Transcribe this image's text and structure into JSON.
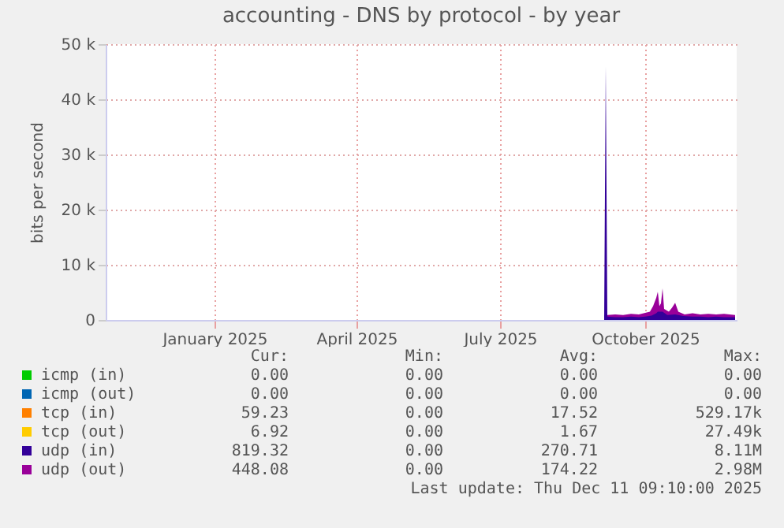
{
  "chart_data": {
    "type": "area",
    "title": "accounting - DNS by protocol - by year",
    "ylabel": "bits per second",
    "xlim": [
      "2024-10-24",
      "2025-11-28"
    ],
    "xticks": [
      {
        "value": "2025-01-01",
        "label": "January 2025"
      },
      {
        "value": "2025-04-01",
        "label": "April 2025"
      },
      {
        "value": "2025-07-01",
        "label": "July 2025"
      },
      {
        "value": "2025-10-01",
        "label": "October 2025"
      }
    ],
    "ylim": [
      0,
      50000
    ],
    "yticks": [
      0,
      {
        "value": 10000,
        "label": "10 k"
      },
      {
        "value": 20000,
        "label": "20 k"
      },
      {
        "value": 30000,
        "label": "30 k"
      },
      {
        "value": 40000,
        "label": "40 k"
      },
      {
        "value": 50000,
        "label": "50 k"
      }
    ],
    "grid": true,
    "legend": "bottom",
    "series": [
      {
        "name": "icmp (in)",
        "color": "#00cc00",
        "type": "line"
      },
      {
        "name": "icmp (out)",
        "color": "#0066b3",
        "type": "line"
      },
      {
        "name": "tcp (in)",
        "color": "#ff8000",
        "type": "line"
      },
      {
        "name": "tcp (out)",
        "color": "#ffcc00",
        "type": "line"
      },
      {
        "name": "udp (in)",
        "color": "#330099",
        "x": [
          "2025-09-05",
          "2025-09-06",
          "2025-09-07",
          "2025-09-12",
          "2025-09-17",
          "2025-09-22",
          "2025-09-27",
          "2025-10-01",
          "2025-10-05",
          "2025-10-08",
          "2025-10-09",
          "2025-10-12",
          "2025-10-15",
          "2025-10-20",
          "2025-10-25",
          "2025-10-31",
          "2025-11-05",
          "2025-11-10",
          "2025-11-15",
          "2025-11-20",
          "2025-11-27"
        ],
        "values": [
          0,
          46000,
          600,
          500,
          500,
          600,
          500,
          600,
          800,
          1200,
          1500,
          1500,
          900,
          1000,
          700,
          600,
          600,
          500,
          600,
          500,
          500
        ]
      },
      {
        "name": "udp (out)",
        "color": "#990099",
        "x": [
          "2025-09-05",
          "2025-09-07",
          "2025-09-12",
          "2025-09-17",
          "2025-09-22",
          "2025-09-27",
          "2025-10-01",
          "2025-10-04",
          "2025-10-06",
          "2025-10-08",
          "2025-10-09",
          "2025-10-10",
          "2025-10-11",
          "2025-10-12",
          "2025-10-13",
          "2025-10-16",
          "2025-10-18",
          "2025-10-20",
          "2025-10-22",
          "2025-10-26",
          "2025-10-31",
          "2025-11-05",
          "2025-11-10",
          "2025-11-15",
          "2025-11-20",
          "2025-11-27"
        ],
        "values": [
          0,
          900,
          1000,
          900,
          1100,
          1000,
          1300,
          1500,
          2500,
          4000,
          5100,
          2500,
          3000,
          5700,
          2000,
          1500,
          2200,
          3100,
          1500,
          1000,
          1200,
          1000,
          1100,
          1000,
          1100,
          900
        ]
      }
    ],
    "annotations": [
      "Cur:",
      "Min:",
      "Avg:",
      "Max:",
      "0.00",
      "0.00",
      "0.00",
      "0.00",
      "0.00",
      "0.00",
      "0.00",
      "0.00",
      "59.23",
      "0.00",
      "17.52",
      "529.17k",
      "6.92",
      "0.00",
      "1.67",
      "27.49k",
      "819.32",
      "0.00",
      "270.71",
      "8.11M",
      "448.08",
      "0.00",
      "174.22",
      "2.98M",
      "Last update: Thu Dec 11 09:10:00 2025"
    ]
  }
}
